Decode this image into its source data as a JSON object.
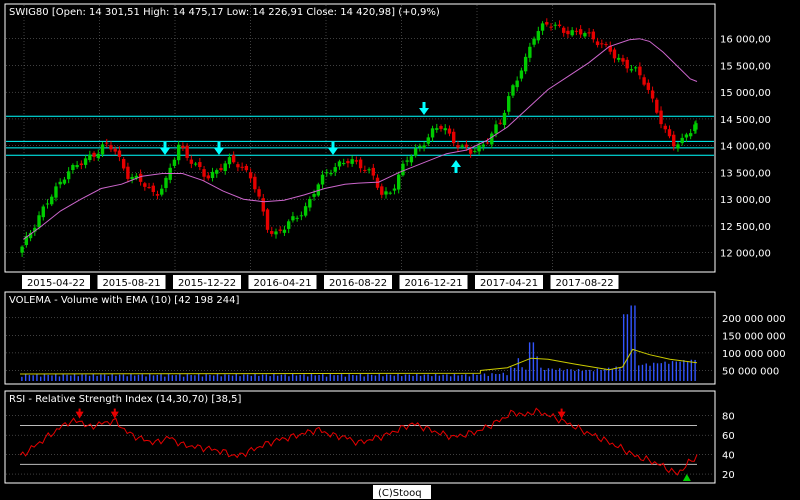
{
  "colors": {
    "background": "#000000",
    "panel_border": "#ffffff",
    "grid": "#7f7f7f",
    "up_candle": "#00cc00",
    "down_candle": "#e60000",
    "sma": "#cc66cc",
    "ref_line": "#00ffff",
    "arrow": "#00ffff",
    "volume_bar": "#3355ff",
    "volume_ema": "#cccc00",
    "rsi_line": "#e60000",
    "rsi_marker": "#e60000",
    "rsi_low_marker": "#00cc00"
  },
  "footer": "(C)Stooq",
  "chart_data": [
    {
      "type": "candlestick",
      "title": "SWIG80 [Open: 14 301,51  High: 14 475,17  Low: 14 226,91  Close: 14 420,98] (+0,9%)",
      "x_tick_labels": [
        "2015-04-22",
        "2015-08-21",
        "2015-12-22",
        "2016-04-21",
        "2016-08-22",
        "2016-12-21",
        "2017-04-21",
        "2017-08-22"
      ],
      "y_tick_labels": [
        "12 000,00",
        "12 500,00",
        "13 000,00",
        "13 500,00",
        "14 000,00",
        "14 500,00",
        "15 000,00",
        "15 500,00",
        "16 000,00"
      ],
      "ylim": [
        11900,
        16350
      ],
      "last": {
        "open": 14301.51,
        "high": 14475.17,
        "low": 14226.91,
        "close": 14420.98,
        "change": "+0,9%"
      },
      "horizontal_lines": [
        13820,
        13960,
        14080,
        14550
      ],
      "arrows": [
        {
          "x": "2015-08-21",
          "direction": "down"
        },
        {
          "x": "2015-12-22",
          "direction": "down"
        },
        {
          "x": "2016-04-21",
          "direction": "down"
        },
        {
          "x": "2016-08-22",
          "direction": "down"
        },
        {
          "x": "2016-12-21",
          "direction": "up"
        }
      ],
      "close_path": [
        [
          0,
          12000
        ],
        [
          0.03,
          12750
        ],
        [
          0.05,
          13100
        ],
        [
          0.07,
          13550
        ],
        [
          0.09,
          13650
        ],
        [
          0.125,
          14020
        ],
        [
          0.14,
          13900
        ],
        [
          0.16,
          13450
        ],
        [
          0.18,
          13300
        ],
        [
          0.2,
          13100
        ],
        [
          0.215,
          13300
        ],
        [
          0.225,
          13650
        ],
        [
          0.235,
          14050
        ],
        [
          0.245,
          13850
        ],
        [
          0.26,
          13600
        ],
        [
          0.275,
          13400
        ],
        [
          0.29,
          13550
        ],
        [
          0.31,
          13700
        ],
        [
          0.325,
          13650
        ],
        [
          0.34,
          13450
        ],
        [
          0.355,
          12900
        ],
        [
          0.365,
          12500
        ],
        [
          0.375,
          12350
        ],
        [
          0.39,
          12450
        ],
        [
          0.41,
          12700
        ],
        [
          0.425,
          12900
        ],
        [
          0.44,
          13250
        ],
        [
          0.455,
          13550
        ],
        [
          0.47,
          13650
        ],
        [
          0.49,
          13700
        ],
        [
          0.505,
          13650
        ],
        [
          0.52,
          13450
        ],
        [
          0.535,
          13050
        ],
        [
          0.55,
          13200
        ],
        [
          0.57,
          13700
        ],
        [
          0.59,
          14000
        ],
        [
          0.61,
          14250
        ],
        [
          0.625,
          14380
        ],
        [
          0.635,
          14200
        ],
        [
          0.65,
          13950
        ],
        [
          0.665,
          13880
        ],
        [
          0.68,
          14000
        ],
        [
          0.695,
          14150
        ],
        [
          0.71,
          14450
        ],
        [
          0.725,
          15050
        ],
        [
          0.745,
          15500
        ],
        [
          0.76,
          16100
        ],
        [
          0.775,
          16300
        ],
        [
          0.79,
          16200
        ],
        [
          0.81,
          16150
        ],
        [
          0.83,
          16100
        ],
        [
          0.85,
          16000
        ],
        [
          0.87,
          15800
        ],
        [
          0.88,
          15600
        ],
        [
          0.895,
          15550
        ],
        [
          0.91,
          15400
        ],
        [
          0.925,
          15100
        ],
        [
          0.94,
          14700
        ],
        [
          0.955,
          14200
        ],
        [
          0.965,
          14000
        ],
        [
          0.975,
          14050
        ],
        [
          0.985,
          14250
        ],
        [
          1,
          14420
        ]
      ],
      "sma_path": [
        [
          0.005,
          12250
        ],
        [
          0.03,
          12480
        ],
        [
          0.06,
          12780
        ],
        [
          0.09,
          13000
        ],
        [
          0.12,
          13200
        ],
        [
          0.15,
          13280
        ],
        [
          0.18,
          13430
        ],
        [
          0.21,
          13480
        ],
        [
          0.24,
          13480
        ],
        [
          0.27,
          13350
        ],
        [
          0.3,
          13150
        ],
        [
          0.33,
          13000
        ],
        [
          0.36,
          12950
        ],
        [
          0.39,
          12980
        ],
        [
          0.42,
          13080
        ],
        [
          0.45,
          13200
        ],
        [
          0.48,
          13280
        ],
        [
          0.5,
          13300
        ],
        [
          0.53,
          13320
        ],
        [
          0.56,
          13500
        ],
        [
          0.6,
          13700
        ],
        [
          0.63,
          13850
        ],
        [
          0.66,
          13920
        ],
        [
          0.69,
          14100
        ],
        [
          0.72,
          14350
        ],
        [
          0.75,
          14700
        ],
        [
          0.78,
          15050
        ],
        [
          0.81,
          15300
        ],
        [
          0.84,
          15550
        ],
        [
          0.87,
          15850
        ],
        [
          0.9,
          15980
        ],
        [
          0.915,
          16000
        ],
        [
          0.93,
          15950
        ],
        [
          0.95,
          15750
        ],
        [
          0.97,
          15500
        ],
        [
          0.99,
          15250
        ],
        [
          1,
          15200
        ]
      ]
    },
    {
      "type": "bar",
      "title": "VOLEMA - Volume with EMA (10) [42 198 244]",
      "y_tick_labels": [
        "50 000 000",
        "100 000 000",
        "150 000 000",
        "200 000 000"
      ],
      "ylim": [
        20000000,
        225000000
      ],
      "last": 42198244,
      "spikes": [
        [
          0.735,
          85000000
        ],
        [
          0.755,
          130000000
        ],
        [
          0.765,
          90000000
        ],
        [
          0.895,
          210000000
        ],
        [
          0.905,
          235000000
        ]
      ],
      "ema_path": [
        [
          0.68,
          50000000
        ],
        [
          0.72,
          58000000
        ],
        [
          0.755,
          85000000
        ],
        [
          0.78,
          82000000
        ],
        [
          0.82,
          68000000
        ],
        [
          0.87,
          52000000
        ],
        [
          0.89,
          60000000
        ],
        [
          0.905,
          110000000
        ],
        [
          0.93,
          95000000
        ],
        [
          0.96,
          82000000
        ],
        [
          1,
          72000000
        ]
      ]
    },
    {
      "type": "line",
      "title": "RSI - Relative Strength Index (14,30,70) [38,5]",
      "y_tick_labels": [
        "20",
        "40",
        "60",
        "80"
      ],
      "ylim": [
        18,
        90
      ],
      "thresholds": [
        30,
        70
      ],
      "last": 38.5,
      "markers": [
        {
          "x": 0.088,
          "direction": "down"
        },
        {
          "x": 0.14,
          "direction": "down"
        },
        {
          "x": 0.8,
          "direction": "down"
        },
        {
          "x": 0.985,
          "direction": "up"
        }
      ],
      "rsi_path": [
        [
          0,
          38
        ],
        [
          0.02,
          48
        ],
        [
          0.04,
          58
        ],
        [
          0.06,
          68
        ],
        [
          0.07,
          73
        ],
        [
          0.09,
          75
        ],
        [
          0.1,
          68
        ],
        [
          0.12,
          72
        ],
        [
          0.14,
          75
        ],
        [
          0.16,
          62
        ],
        [
          0.18,
          56
        ],
        [
          0.2,
          52
        ],
        [
          0.22,
          58
        ],
        [
          0.24,
          50
        ],
        [
          0.26,
          48
        ],
        [
          0.28,
          46
        ],
        [
          0.3,
          43
        ],
        [
          0.32,
          38
        ],
        [
          0.34,
          44
        ],
        [
          0.36,
          50
        ],
        [
          0.38,
          55
        ],
        [
          0.4,
          58
        ],
        [
          0.42,
          62
        ],
        [
          0.44,
          66
        ],
        [
          0.46,
          60
        ],
        [
          0.48,
          58
        ],
        [
          0.5,
          52
        ],
        [
          0.52,
          56
        ],
        [
          0.54,
          60
        ],
        [
          0.56,
          66
        ],
        [
          0.58,
          72
        ],
        [
          0.6,
          67
        ],
        [
          0.62,
          62
        ],
        [
          0.64,
          58
        ],
        [
          0.66,
          61
        ],
        [
          0.68,
          65
        ],
        [
          0.7,
          72
        ],
        [
          0.72,
          80
        ],
        [
          0.73,
          84
        ],
        [
          0.745,
          80
        ],
        [
          0.76,
          85
        ],
        [
          0.775,
          82
        ],
        [
          0.79,
          78
        ],
        [
          0.81,
          72
        ],
        [
          0.83,
          65
        ],
        [
          0.86,
          56
        ],
        [
          0.89,
          46
        ],
        [
          0.91,
          38
        ],
        [
          0.93,
          34
        ],
        [
          0.95,
          28
        ],
        [
          0.96,
          24
        ],
        [
          0.97,
          20
        ],
        [
          0.98,
          26
        ],
        [
          0.99,
          33
        ],
        [
          1,
          38.5
        ]
      ]
    }
  ]
}
